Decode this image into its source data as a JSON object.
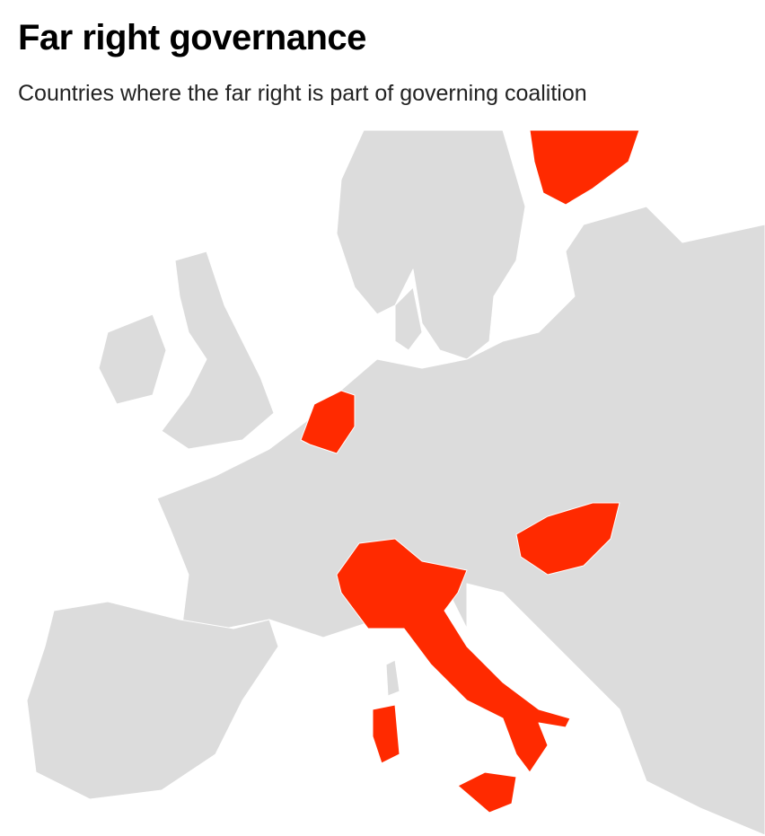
{
  "header": {
    "title": "Far right governance",
    "subtitle": "Countries where the far right is part of governing coalition"
  }
}
